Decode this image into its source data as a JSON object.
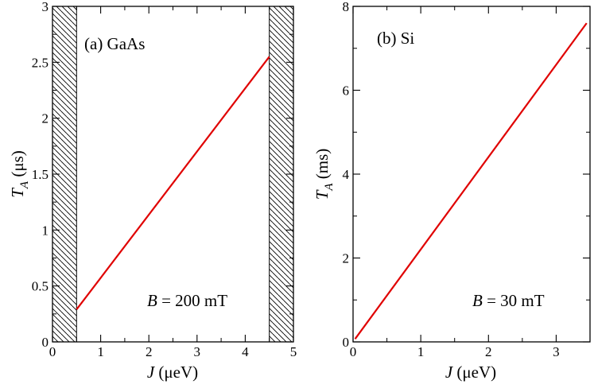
{
  "chart_data": [
    {
      "type": "line",
      "panel_label": "(a) GaAs",
      "annotation": {
        "symbol": "B",
        "text": " = 200 mT"
      },
      "xlabel": {
        "symbol": "J",
        "unit": " (μeV)"
      },
      "ylabel": {
        "symbol": "T",
        "subscript": "A",
        "unit": " (μs)"
      },
      "xlim": [
        0,
        5
      ],
      "ylim": [
        0,
        3
      ],
      "x_ticks": [
        0,
        1,
        2,
        3,
        4,
        5
      ],
      "y_ticks": [
        0,
        0.5,
        1,
        1.5,
        2,
        2.5,
        3
      ],
      "x_tick_labels": [
        "0",
        "1",
        "2",
        "3",
        "4",
        "5"
      ],
      "y_tick_labels": [
        "0",
        "0.5",
        "1",
        "1.5",
        "2",
        "2.5",
        "3"
      ],
      "grid": false,
      "hatched_regions": [
        [
          0,
          0.5
        ],
        [
          4.5,
          5
        ]
      ],
      "series": [
        {
          "color": "#e00000",
          "x": [
            0.5,
            4.5
          ],
          "y": [
            0.29,
            2.55
          ]
        }
      ]
    },
    {
      "type": "line",
      "panel_label": "(b) Si",
      "annotation": {
        "symbol": "B",
        "text": " = 30 mT"
      },
      "xlabel": {
        "symbol": "J",
        "unit": " (μeV)"
      },
      "ylabel": {
        "symbol": "T",
        "subscript": "A",
        "unit": " (ms)"
      },
      "xlim": [
        0,
        3.5
      ],
      "ylim": [
        0,
        8
      ],
      "x_ticks": [
        0,
        1,
        2,
        3
      ],
      "y_ticks": [
        0,
        2,
        4,
        6,
        8
      ],
      "x_tick_labels": [
        "0",
        "1",
        "2",
        "3"
      ],
      "y_tick_labels": [
        "0",
        "2",
        "4",
        "6",
        "8"
      ],
      "grid": false,
      "hatched_regions": [],
      "series": [
        {
          "color": "#e00000",
          "x": [
            0.03,
            3.45
          ],
          "y": [
            0.07,
            7.6
          ]
        }
      ]
    }
  ]
}
